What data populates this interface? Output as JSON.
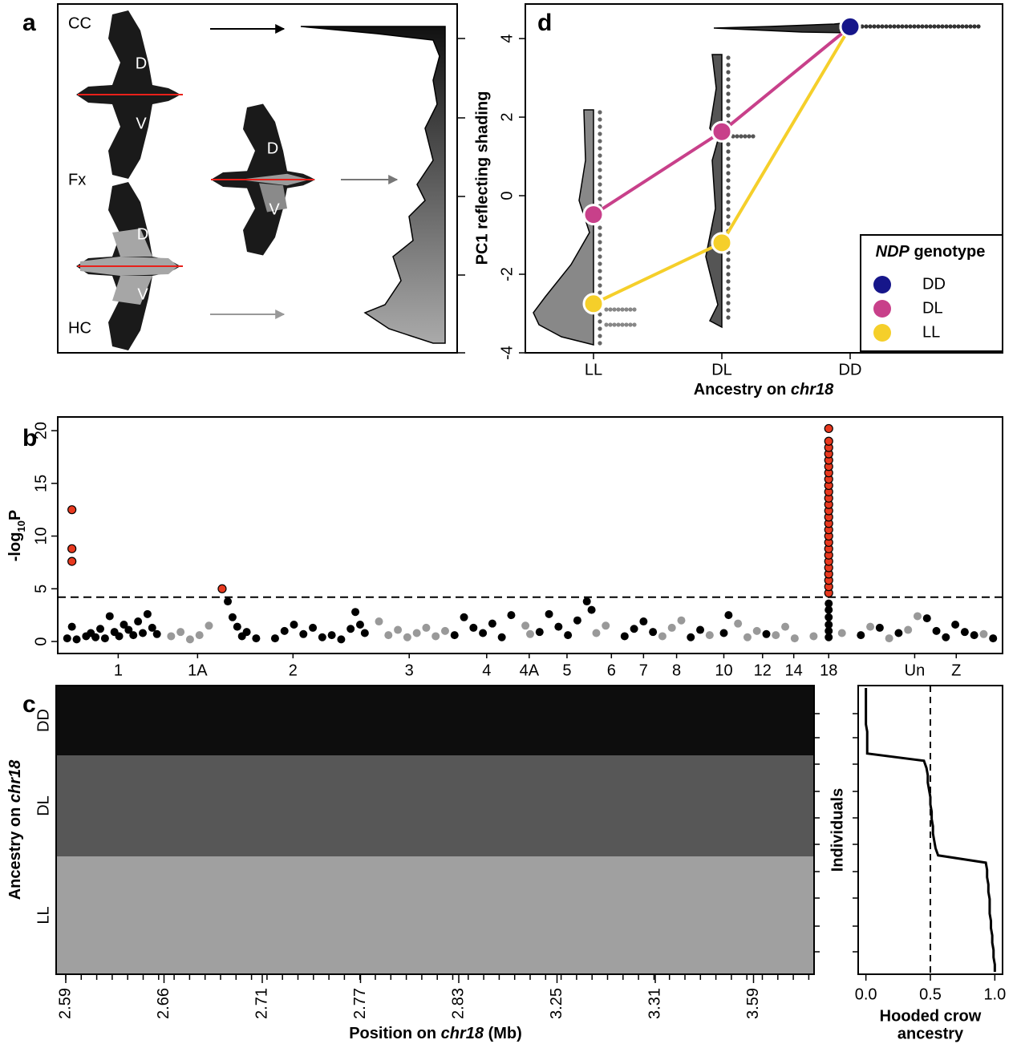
{
  "chart_data": [
    {
      "type": "illustration",
      "panel": "a",
      "labels": [
        "CC",
        "Fx",
        "HC"
      ],
      "regions": [
        "D",
        "V"
      ]
    },
    {
      "type": "scatter",
      "panel": "b",
      "ylabel": [
        "-log",
        "10",
        "P"
      ],
      "ylim": [
        -1.14,
        21.3
      ],
      "yticks": [
        0,
        5,
        10,
        15,
        20
      ],
      "xlim": [
        0,
        100
      ],
      "xticks": [
        {
          "value": 6.4,
          "label": "1"
        },
        {
          "value": 14.8,
          "label": "1A"
        },
        {
          "value": 24.9,
          "label": "2"
        },
        {
          "value": 37.2,
          "label": "3"
        },
        {
          "value": 45.4,
          "label": "4"
        },
        {
          "value": 49.9,
          "label": "4A"
        },
        {
          "value": 53.9,
          "label": "5"
        },
        {
          "value": 58.6,
          "label": "6"
        },
        {
          "value": 62.0,
          "label": "7"
        },
        {
          "value": 65.5,
          "label": "8"
        },
        {
          "value": 70.5,
          "label": "10"
        },
        {
          "value": 74.6,
          "label": "12"
        },
        {
          "value": 77.9,
          "label": "14"
        },
        {
          "value": 81.6,
          "label": "18"
        },
        {
          "value": 90.7,
          "label": "Un"
        },
        {
          "value": 95.1,
          "label": "Z"
        }
      ],
      "threshold": 4.2,
      "series": [
        {
          "color": "#000000",
          "x": [
            1,
            1.5,
            2,
            3,
            3.5,
            4,
            4.5,
            5,
            5.5,
            6,
            6.5,
            7,
            7.5,
            8,
            8.5,
            9,
            9.5,
            10,
            10.5,
            18,
            18.5,
            19,
            19.5,
            20,
            21,
            23,
            24,
            25,
            26,
            27,
            28,
            29,
            30,
            31,
            31.5,
            32,
            32.5,
            42,
            43,
            44,
            45,
            46,
            47,
            48,
            51,
            52,
            53,
            54,
            55,
            56,
            56.5,
            60,
            61,
            62,
            63,
            67,
            68,
            70.5,
            71,
            75,
            81.6,
            81.6,
            81.6,
            81.6,
            81.6,
            81.6,
            85,
            87,
            89,
            92,
            93,
            94,
            95,
            96,
            97,
            99
          ],
          "values": [
            0.3,
            1.4,
            0.2,
            0.5,
            0.8,
            0.4,
            1.2,
            0.3,
            2.4,
            0.9,
            0.5,
            1.6,
            1.1,
            0.6,
            1.9,
            0.8,
            2.6,
            1.3,
            0.7,
            3.8,
            2.3,
            1.4,
            0.5,
            0.9,
            0.3,
            0.3,
            1.0,
            1.6,
            0.7,
            1.3,
            0.4,
            0.6,
            0.2,
            1.2,
            2.8,
            1.6,
            0.8,
            0.6,
            2.3,
            1.3,
            0.8,
            1.7,
            0.4,
            2.5,
            0.9,
            2.6,
            1.4,
            0.6,
            2.0,
            3.8,
            3.0,
            0.5,
            1.2,
            1.9,
            0.9,
            0.4,
            1.1,
            0.8,
            2.5,
            0.7,
            0.4,
            1.0,
            1.6,
            2.3,
            3.0,
            3.6,
            0.6,
            1.3,
            0.8,
            2.2,
            1.0,
            0.4,
            1.6,
            0.9,
            0.6,
            0.3
          ]
        },
        {
          "color": "#999999",
          "x": [
            12,
            13,
            14,
            15,
            16,
            34,
            35,
            36,
            37,
            38,
            39,
            40,
            41,
            49.5,
            50,
            57,
            58,
            64,
            65,
            66,
            69,
            72,
            73,
            74,
            76,
            77,
            78,
            80,
            83,
            86,
            88,
            90,
            91,
            98
          ],
          "values": [
            0.5,
            0.9,
            0.2,
            0.6,
            1.5,
            1.9,
            0.6,
            1.1,
            0.4,
            0.8,
            1.3,
            0.5,
            1.0,
            1.5,
            0.7,
            0.8,
            1.5,
            0.5,
            1.3,
            2.0,
            0.6,
            1.7,
            0.4,
            1.0,
            0.6,
            1.4,
            0.3,
            0.5,
            0.8,
            1.4,
            0.3,
            1.1,
            2.4,
            0.7
          ]
        },
        {
          "color": "#e8391f",
          "x": [
            1.5,
            1.5,
            1.5,
            17.4,
            81.6,
            81.6,
            81.6,
            81.6,
            81.6,
            81.6,
            81.6,
            81.6,
            81.6,
            81.6,
            81.6,
            81.6,
            81.6,
            81.6,
            81.6,
            81.6,
            81.6,
            81.6,
            81.6,
            81.6,
            81.6,
            81.6,
            81.6,
            81.6,
            81.6,
            81.6
          ],
          "values": [
            12.5,
            8.8,
            7.6,
            5.0,
            4.6,
            5.2,
            5.8,
            6.4,
            7.0,
            7.6,
            8.2,
            8.8,
            9.4,
            10.0,
            10.6,
            11.2,
            11.8,
            12.4,
            13.0,
            13.6,
            14.2,
            14.8,
            15.4,
            16.0,
            16.6,
            17.2,
            17.8,
            18.4,
            19.0,
            20.2
          ]
        }
      ]
    },
    {
      "type": "heatmap",
      "panel": "c",
      "rows": [
        "DD",
        "DL",
        "LL"
      ],
      "colors": [
        "#0d0d0d",
        "#575757",
        "#a0a0a0"
      ],
      "ylabel": [
        "Ancestry on ",
        "chr18"
      ],
      "categories": [
        "2.59",
        "2.66",
        "2.71",
        "2.77",
        "2.83",
        "3.25",
        "3.31",
        "3.59"
      ],
      "xlabel": [
        "Position on ",
        "chr18",
        " (Mb)"
      ]
    },
    {
      "type": "step",
      "xlim": [
        -0.06,
        1.06
      ],
      "xticks": [
        {
          "value": 0,
          "label": "0.0"
        },
        0.5,
        {
          "value": 1,
          "label": "1.0"
        }
      ],
      "vline": 0.5,
      "ylabel": "Individuals",
      "xlabel": [
        "Hooded crow",
        "ancestry"
      ],
      "values": [
        0,
        0,
        0,
        0,
        0,
        0,
        0.01,
        0.01,
        0.01,
        0.01,
        0.45,
        0.47,
        0.48,
        0.48,
        0.49,
        0.5,
        0.5,
        0.51,
        0.51,
        0.52,
        0.52,
        0.53,
        0.54,
        0.56,
        0.93,
        0.94,
        0.94,
        0.95,
        0.95,
        0.96,
        0.96,
        0.96,
        0.97,
        0.97,
        0.98,
        0.98,
        0.99,
        0.99,
        1.0,
        1.0
      ]
    },
    {
      "type": "line",
      "panel": "d",
      "ylabel": "PC1 reflecting shading",
      "xlabel": [
        "Ancestry on ",
        "chr18"
      ],
      "categories": [
        "LL",
        "DL",
        "DD"
      ],
      "ylim": [
        -4,
        4.88
      ],
      "yticks": [
        -4,
        -2,
        0,
        2,
        4
      ],
      "legend_title": [
        "NDP",
        " genotype"
      ],
      "series": [
        {
          "name": "DD",
          "color": "#16168a",
          "values": [
            null,
            null,
            4.3
          ]
        },
        {
          "name": "DL",
          "color": "#c8408a",
          "values": [
            -0.48,
            1.63,
            4.3
          ]
        },
        {
          "name": "LL",
          "color": "#f5cf2a",
          "values": [
            -2.75,
            -1.2,
            4.3
          ]
        }
      ]
    }
  ]
}
